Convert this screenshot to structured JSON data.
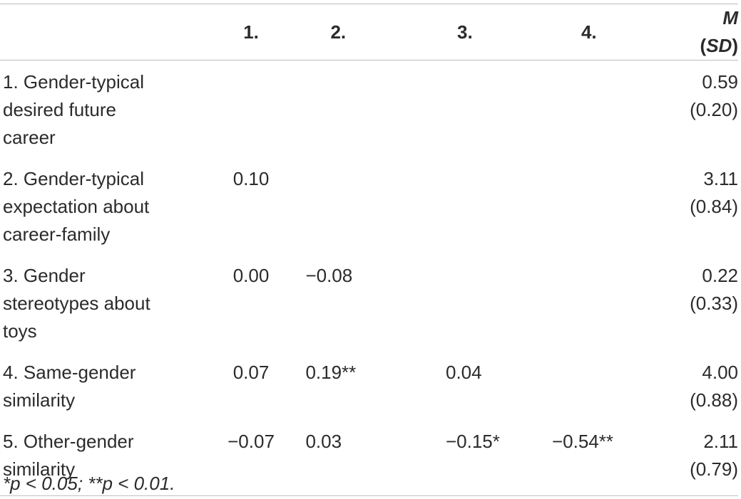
{
  "table": {
    "headers": [
      "",
      "1.",
      "2.",
      "3.",
      "4.",
      "M (SD)"
    ],
    "header_m": "M",
    "header_sd": "SD",
    "rows": [
      {
        "label_lines": [
          "1. Gender-typical",
          "desired future",
          "career"
        ],
        "c1": "",
        "c2": "",
        "c3": "",
        "c4": "",
        "msd": "0.59 (0.20)"
      },
      {
        "label_lines": [
          "2. Gender-typical",
          "expectation about",
          "career-family"
        ],
        "c1": "0.10",
        "c2": "",
        "c3": "",
        "c4": "",
        "msd": "3.11 (0.84)"
      },
      {
        "label_lines": [
          "3. Gender",
          "stereotypes about",
          "toys"
        ],
        "c1": "0.00",
        "c2": "−0.08",
        "c3": "",
        "c4": "",
        "msd": "0.22 (0.33)"
      },
      {
        "label_lines": [
          "4. Same-gender",
          "similarity"
        ],
        "c1": "0.07",
        "c2": "0.19**",
        "c3": "0.04",
        "c4": "",
        "msd": "4.00 (0.88)"
      },
      {
        "label_lines": [
          "5. Other-gender",
          "similarity"
        ],
        "c1": "−0.07",
        "c2": "0.03",
        "c3": "−0.15*",
        "c4": "−0.54**",
        "msd": "2.11 (0.79)"
      }
    ]
  },
  "note": "*p < 0.05; **p < 0.01."
}
